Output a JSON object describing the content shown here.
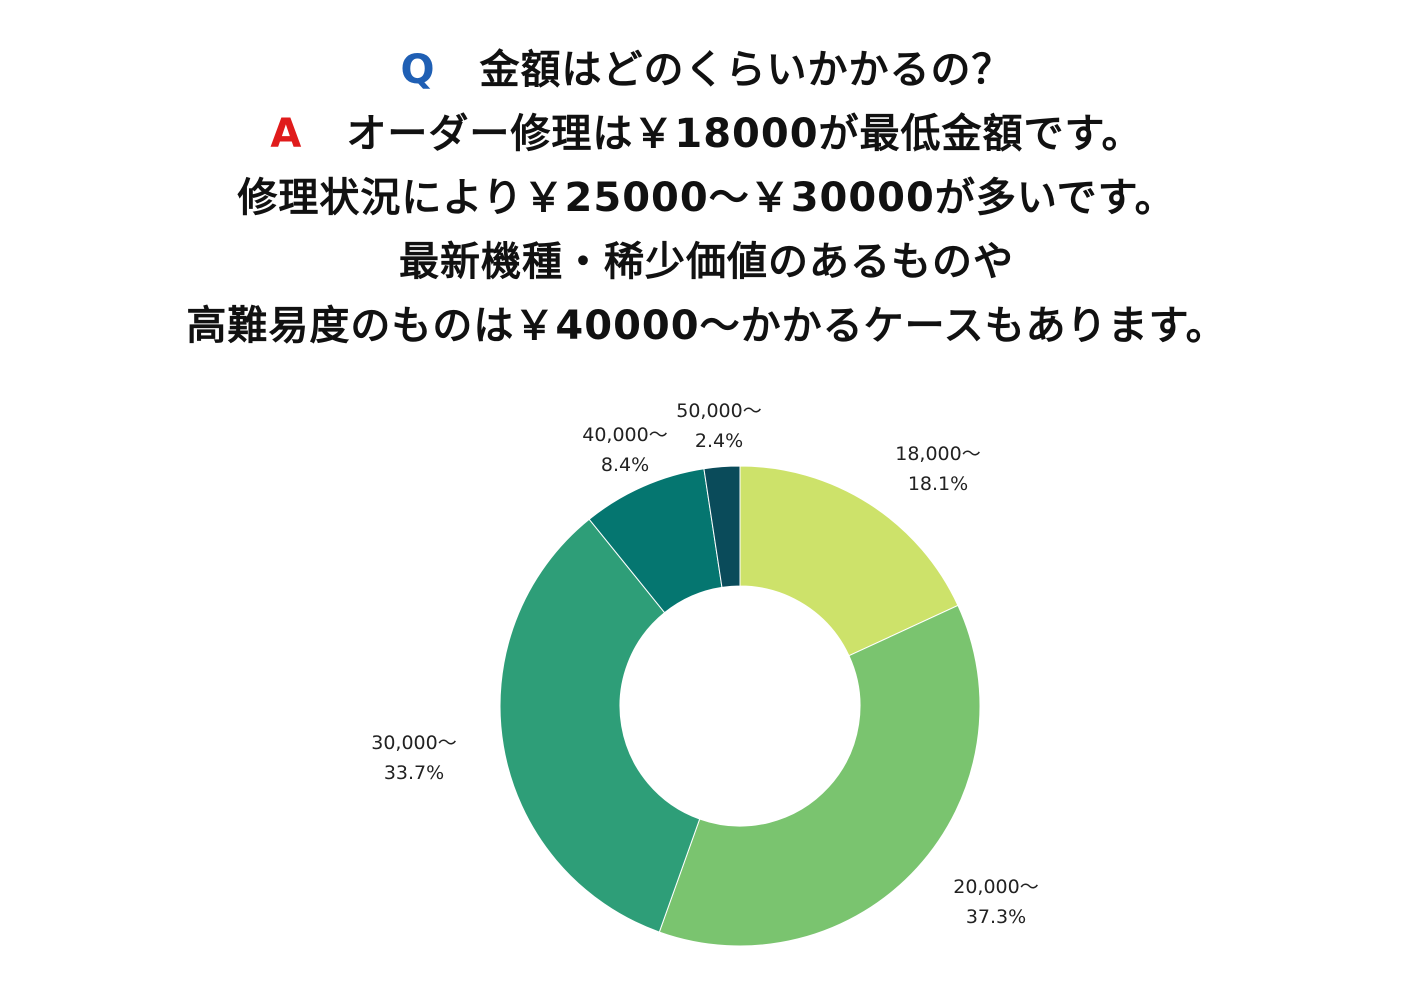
{
  "header": {
    "q_marker": "Q",
    "q_text": "金額はどのくらいかかるの？",
    "a_marker": "A",
    "a_text": "オーダー修理は￥18000が最低金額です。",
    "lines": [
      "修理状況により￥25000〜￥30000が多いです。",
      "最新機種・稀少価値のあるものや",
      "高難易度のものは￥40000〜かかるケースもあります。"
    ],
    "q_color": "#1f5fb4",
    "a_color": "#e01b1b"
  },
  "chart_data": {
    "type": "pie",
    "donut": true,
    "title": "",
    "slices": [
      {
        "label": "18,000〜",
        "value": 18.1,
        "value_label": "18.1%",
        "color": "#cde26a"
      },
      {
        "label": "20,000〜",
        "value": 37.3,
        "value_label": "37.3%",
        "color": "#7ac46f"
      },
      {
        "label": "30,000〜",
        "value": 33.7,
        "value_label": "33.7%",
        "color": "#2e9e78"
      },
      {
        "label": "40,000〜",
        "value": 8.4,
        "value_label": "8.4%",
        "color": "#057670"
      },
      {
        "label": "50,000〜",
        "value": 2.4,
        "value_label": "2.4%",
        "color": "#0a4b5a"
      }
    ]
  }
}
